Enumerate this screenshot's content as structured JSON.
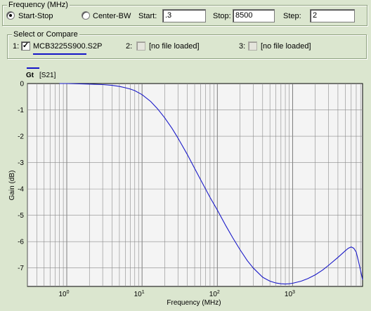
{
  "frequency": {
    "title": "Frequency (MHz)",
    "mode_start_stop": "Start-Stop",
    "mode_center_bw": "Center-BW",
    "selected_mode": "Start-Stop",
    "start_label": "Start:",
    "start_value": ".3",
    "stop_label": "Stop:",
    "stop_value": "8500",
    "step_label": "Step:",
    "step_value": "2"
  },
  "compare": {
    "title": "Select or Compare",
    "slots": [
      {
        "index": "1:",
        "checked": true,
        "file": "MCB3225S900.S2P"
      },
      {
        "index": "2:",
        "checked": false,
        "file": "[no file loaded]"
      },
      {
        "index": "3:",
        "checked": false,
        "file": "[no file loaded]"
      }
    ],
    "series_color": "#1414c8"
  },
  "chart_data": {
    "type": "line",
    "legend": "Gt",
    "legend_param": "[S21]",
    "ylabel": "Gain (dB)",
    "xlabel": "Frequency (MHz)",
    "x_scale": "log",
    "xlim": [
      0.3,
      8500
    ],
    "ylim": [
      -7.7,
      0
    ],
    "y_ticks": [
      0,
      -1,
      -2,
      -3,
      -4,
      -5,
      -6,
      -7
    ],
    "y_tick_labels": [
      "0",
      "-1",
      "-2",
      "-3",
      "-4",
      "-5",
      "-6",
      "-7"
    ],
    "x_ticks": [
      1,
      10,
      100,
      1000
    ],
    "x_tick_labels": [
      [
        "10",
        "0"
      ],
      [
        "10",
        "1"
      ],
      [
        "10",
        "2"
      ],
      [
        "10",
        "3"
      ]
    ],
    "grid": true,
    "line_color": "#1a1ac8",
    "series": [
      {
        "name": "Gt",
        "x": [
          0.8,
          1,
          2,
          3,
          4,
          5,
          6,
          7,
          8,
          10,
          13,
          16,
          20,
          25,
          30,
          40,
          50,
          60,
          80,
          100,
          130,
          160,
          200,
          250,
          300,
          400,
          500,
          600,
          700,
          800,
          900,
          1000,
          1300,
          1600,
          2000,
          2500,
          3000,
          4000,
          5000,
          5500,
          6000,
          6500,
          7000,
          7500,
          8000,
          8500
        ],
        "y": [
          0.0,
          0.0,
          -0.02,
          -0.04,
          -0.07,
          -0.11,
          -0.16,
          -0.21,
          -0.27,
          -0.42,
          -0.68,
          -0.95,
          -1.3,
          -1.7,
          -2.07,
          -2.7,
          -3.22,
          -3.65,
          -4.32,
          -4.8,
          -5.4,
          -5.85,
          -6.3,
          -6.72,
          -7.0,
          -7.35,
          -7.5,
          -7.57,
          -7.6,
          -7.61,
          -7.6,
          -7.58,
          -7.5,
          -7.4,
          -7.26,
          -7.08,
          -6.9,
          -6.6,
          -6.35,
          -6.25,
          -6.2,
          -6.25,
          -6.4,
          -6.75,
          -7.1,
          -7.45
        ]
      }
    ]
  }
}
